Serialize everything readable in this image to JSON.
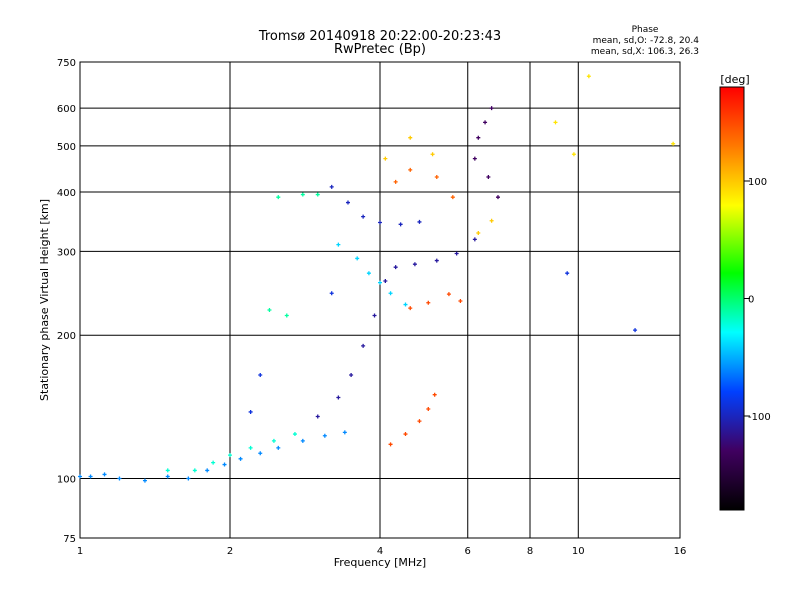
{
  "chart_data": {
    "type": "scatter",
    "title": "Tromsø 20140918 20:22:00-20:23:43",
    "subtitle": "RwPretec (Bp)",
    "xlabel": "Frequency [MHz]",
    "ylabel": "Stationary phase Virtual Height [km]",
    "x_scale": "log",
    "y_scale": "log",
    "xlim": [
      1,
      16
    ],
    "ylim": [
      75,
      750
    ],
    "x_ticks": [
      1,
      2,
      4,
      6,
      8,
      10,
      16
    ],
    "y_ticks": [
      75,
      100,
      200,
      300,
      400,
      500,
      600,
      750
    ],
    "grid_x": [
      2,
      4,
      6,
      8,
      10
    ],
    "grid_y": [
      100,
      200,
      300,
      400,
      500,
      600
    ],
    "phase_box": {
      "title": "Phase",
      "line_o": "mean, sd,O: -72.8, 20.4",
      "line_x": "mean, sd,X: 106.3, 26.3"
    },
    "colorbar": {
      "unit": "[deg]",
      "range": [
        -180,
        180
      ],
      "ticks": [
        100,
        0,
        -100
      ]
    },
    "traces": [
      {
        "phase": -60,
        "points": [
          [
            1.0,
            101
          ],
          [
            1.05,
            101
          ],
          [
            1.12,
            102
          ],
          [
            1.2,
            100
          ],
          [
            1.35,
            99
          ],
          [
            1.5,
            101
          ],
          [
            1.65,
            100
          ],
          [
            1.8,
            104
          ],
          [
            1.95,
            107
          ],
          [
            2.1,
            110
          ],
          [
            2.3,
            113
          ],
          [
            2.5,
            116
          ],
          [
            2.8,
            120
          ],
          [
            3.1,
            123
          ],
          [
            3.4,
            125
          ]
        ]
      },
      {
        "phase": -20,
        "points": [
          [
            1.5,
            104
          ],
          [
            1.7,
            104
          ],
          [
            1.85,
            108
          ],
          [
            2.0,
            112
          ],
          [
            2.2,
            116
          ],
          [
            2.45,
            120
          ],
          [
            2.7,
            124
          ]
        ]
      },
      {
        "phase": -110,
        "points": [
          [
            3.0,
            135
          ],
          [
            3.3,
            148
          ],
          [
            3.5,
            165
          ],
          [
            3.7,
            190
          ],
          [
            3.9,
            220
          ],
          [
            4.1,
            260
          ],
          [
            4.3,
            278
          ],
          [
            4.7,
            282
          ],
          [
            5.2,
            287
          ],
          [
            5.7,
            297
          ],
          [
            6.2,
            318
          ]
        ]
      },
      {
        "phase": -40,
        "points": [
          [
            3.3,
            310
          ],
          [
            3.6,
            290
          ],
          [
            3.8,
            270
          ],
          [
            4.0,
            258
          ],
          [
            4.2,
            245
          ],
          [
            4.5,
            232
          ]
        ]
      },
      {
        "phase": -100,
        "points": [
          [
            3.2,
            410
          ],
          [
            3.45,
            380
          ],
          [
            3.7,
            355
          ],
          [
            4.0,
            345
          ],
          [
            4.4,
            342
          ],
          [
            4.8,
            346
          ]
        ]
      },
      {
        "phase": 150,
        "points": [
          [
            4.2,
            118
          ],
          [
            4.5,
            124
          ],
          [
            4.8,
            132
          ],
          [
            5.0,
            140
          ],
          [
            5.15,
            150
          ],
          [
            4.6,
            228
          ],
          [
            5.0,
            234
          ],
          [
            5.5,
            244
          ],
          [
            5.8,
            236
          ]
        ]
      },
      {
        "phase": 140,
        "points": [
          [
            4.3,
            420
          ],
          [
            4.6,
            445
          ],
          [
            5.2,
            430
          ],
          [
            5.6,
            390
          ]
        ]
      },
      {
        "phase": 100,
        "points": [
          [
            4.1,
            470
          ],
          [
            4.6,
            520
          ],
          [
            5.1,
            480
          ],
          [
            6.3,
            328
          ],
          [
            6.7,
            348
          ]
        ]
      },
      {
        "phase": -130,
        "points": [
          [
            6.3,
            520
          ],
          [
            6.5,
            560
          ],
          [
            6.7,
            600
          ],
          [
            6.2,
            470
          ],
          [
            6.6,
            430
          ],
          [
            6.9,
            390
          ]
        ]
      },
      {
        "phase": -10,
        "points": [
          [
            2.5,
            390
          ],
          [
            2.8,
            395
          ],
          [
            3.0,
            395
          ],
          [
            2.4,
            226
          ],
          [
            2.6,
            220
          ]
        ]
      },
      {
        "phase": 90,
        "points": [
          [
            9.0,
            560
          ],
          [
            9.8,
            480
          ],
          [
            10.5,
            700
          ],
          [
            15.5,
            505
          ]
        ]
      },
      {
        "phase": -90,
        "points": [
          [
            2.3,
            165
          ],
          [
            2.2,
            138
          ],
          [
            3.2,
            245
          ],
          [
            9.5,
            270
          ],
          [
            13,
            205
          ]
        ]
      }
    ]
  }
}
